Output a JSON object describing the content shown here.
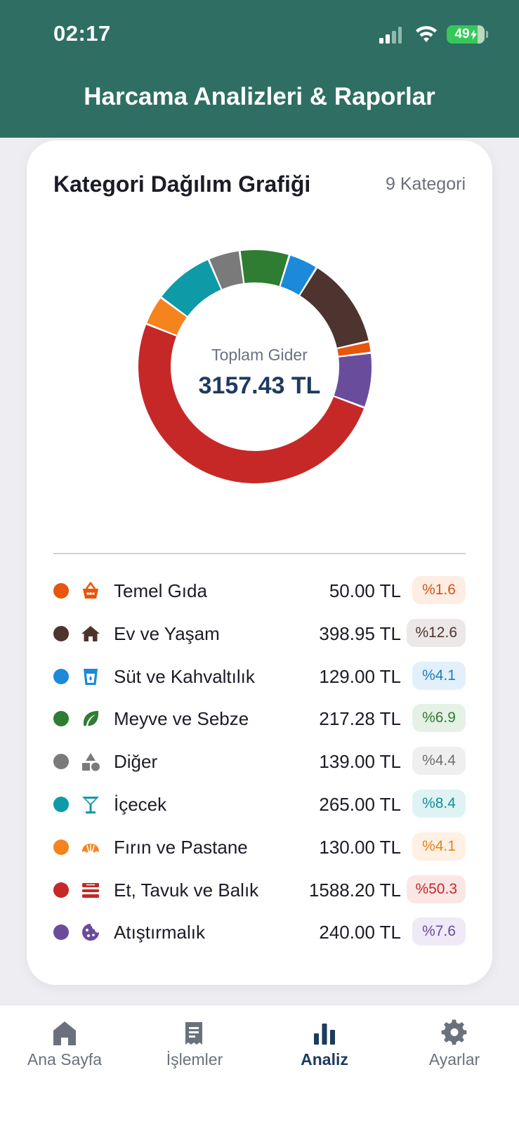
{
  "status": {
    "time": "02:17",
    "battery": "49"
  },
  "header": {
    "title": "Harcama Analizleri & Raporlar"
  },
  "card": {
    "title": "Kategori Dağılım Grafiği",
    "count_label": "9 Kategori",
    "center_label": "Toplam Gider",
    "total": "3157.43 TL"
  },
  "chart_data": {
    "type": "pie",
    "categories": [
      "Temel Gıda",
      "Ev ve Yaşam",
      "Süt ve Kahvaltılık",
      "Meyve ve Sebze",
      "Diğer",
      "İçecek",
      "Fırın ve Pastane",
      "Et, Tavuk ve Balık",
      "Atıştırmalık"
    ],
    "values": [
      50.0,
      398.95,
      129.0,
      217.28,
      139.0,
      265.0,
      130.0,
      1588.2,
      240.0
    ],
    "colors": [
      "#E8550C",
      "#4E342E",
      "#1C8AD9",
      "#2E7D32",
      "#7A7A7A",
      "#0E9AA7",
      "#F5841F",
      "#C62828",
      "#6A4C9C"
    ],
    "donut": true
  },
  "legend": [
    {
      "name": "Temel Gıda",
      "amount": "50.00 TL",
      "pct": "%1.6",
      "icon": "basket-icon",
      "color": "#E8550C",
      "pill_bg": "#FDEDE3",
      "pill_fg": "#D9540E"
    },
    {
      "name": "Ev ve Yaşam",
      "amount": "398.95 TL",
      "pct": "%12.6",
      "icon": "house-icon",
      "color": "#4E342E",
      "pill_bg": "#ECE8E7",
      "pill_fg": "#4E342E"
    },
    {
      "name": "Süt ve Kahvaltılık",
      "amount": "129.00 TL",
      "pct": "%4.1",
      "icon": "cup-icon",
      "color": "#1C8AD9",
      "pill_bg": "#E2F0FB",
      "pill_fg": "#1C7CC2"
    },
    {
      "name": "Meyve ve Sebze",
      "amount": "217.28 TL",
      "pct": "%6.9",
      "icon": "leaf-icon",
      "color": "#2E7D32",
      "pill_bg": "#E6F1E6",
      "pill_fg": "#2E7D32"
    },
    {
      "name": "Diğer",
      "amount": "139.00 TL",
      "pct": "%4.4",
      "icon": "shapes-icon",
      "color": "#7A7A7A",
      "pill_bg": "#EFEFEF",
      "pill_fg": "#6F6F6F"
    },
    {
      "name": "İçecek",
      "amount": "265.00 TL",
      "pct": "%8.4",
      "icon": "cocktail-icon",
      "color": "#0E9AA7",
      "pill_bg": "#E0F3F4",
      "pill_fg": "#0E8F9B"
    },
    {
      "name": "Fırın ve Pastane",
      "amount": "130.00 TL",
      "pct": "%4.1",
      "icon": "croissant-icon",
      "color": "#F5841F",
      "pill_bg": "#FEF1E3",
      "pill_fg": "#E8821C"
    },
    {
      "name": "Et, Tavuk ve Balık",
      "amount": "1588.20 TL",
      "pct": "%50.3",
      "icon": "food-tray-icon",
      "color": "#C62828",
      "pill_bg": "#FBE6E6",
      "pill_fg": "#C62828"
    },
    {
      "name": "Atıştırmalık",
      "amount": "240.00 TL",
      "pct": "%7.6",
      "icon": "cookie-icon",
      "color": "#6A4C9C",
      "pill_bg": "#EFEAF5",
      "pill_fg": "#6A4C9C"
    }
  ],
  "tabs": [
    {
      "label": "Ana Sayfa",
      "icon": "home-icon",
      "active": false
    },
    {
      "label": "İşlemler",
      "icon": "receipt-icon",
      "active": false
    },
    {
      "label": "Analiz",
      "icon": "bar-chart-icon",
      "active": true
    },
    {
      "label": "Ayarlar",
      "icon": "gear-icon",
      "active": false
    }
  ]
}
